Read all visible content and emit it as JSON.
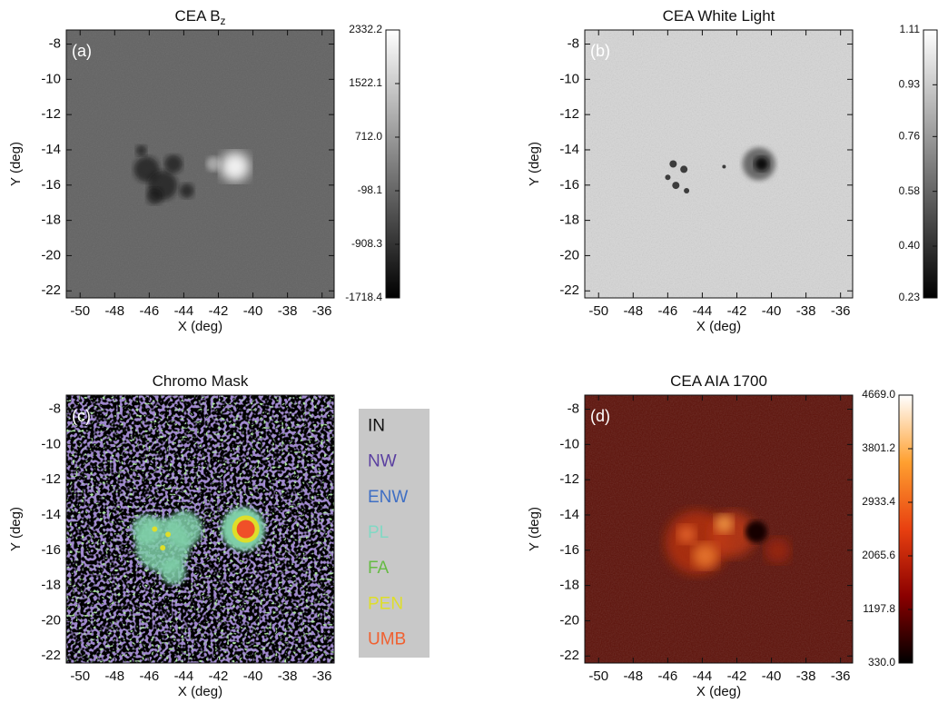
{
  "chart_data": [
    {
      "type": "image",
      "title": "CEA B",
      "title_subscript": "z",
      "panel_label": "(a)",
      "x_label": "X (deg)",
      "y_label": "Y (deg)",
      "xlim": [
        -50.8,
        -35.3
      ],
      "ylim": [
        -22.4,
        -7.2
      ],
      "xticks": [
        -50,
        -48,
        -46,
        -44,
        -42,
        -40,
        -38,
        -36
      ],
      "yticks": [
        -22,
        -20,
        -18,
        -16,
        -14,
        -12,
        -10,
        -8
      ],
      "colorbar": {
        "colors": [
          "#000000",
          "#ffffff"
        ],
        "lim": [
          -1718.4,
          2332.2
        ],
        "ticks": [
          -1718.4,
          -908.3,
          -98.1,
          {
            "value": 712,
            "label": "712.0"
          },
          1522.1,
          2332.2
        ]
      }
    },
    {
      "type": "image",
      "title": "CEA White Light",
      "panel_label": "(b)",
      "x_label": "X (deg)",
      "y_label": "Y (deg)",
      "xlim": [
        -50.8,
        -35.3
      ],
      "ylim": [
        -22.4,
        -7.2
      ],
      "xticks": [
        -50,
        -48,
        -46,
        -44,
        -42,
        -40,
        -38,
        -36
      ],
      "yticks": [
        -22,
        -20,
        -18,
        -16,
        -14,
        -12,
        -10,
        -8
      ],
      "colorbar": {
        "colors": [
          "#000000",
          "#ffffff"
        ],
        "lim": [
          0.23,
          1.11
        ],
        "ticks": [
          0.23,
          {
            "value": 0.4,
            "label": "0.40"
          },
          0.58,
          0.76,
          0.93,
          1.11
        ]
      }
    },
    {
      "type": "image",
      "title": "Chromo Mask",
      "panel_label": "(c)",
      "x_label": "X (deg)",
      "y_label": "Y (deg)",
      "xlim": [
        -50.8,
        -35.3
      ],
      "ylim": [
        -22.4,
        -7.2
      ],
      "xticks": [
        -50,
        -48,
        -46,
        -44,
        -42,
        -40,
        -38,
        -36
      ],
      "yticks": [
        -22,
        -20,
        -18,
        -16,
        -14,
        -12,
        -10,
        -8
      ],
      "legend": [
        {
          "name": "IN",
          "color": "#111111"
        },
        {
          "name": "NW",
          "color": "#5a3fa0"
        },
        {
          "name": "ENW",
          "color": "#3f6fc4"
        },
        {
          "name": "PL",
          "color": "#82d8c4"
        },
        {
          "name": "FA",
          "color": "#66bb44"
        },
        {
          "name": "PEN",
          "color": "#dede2a"
        },
        {
          "name": "UMB",
          "color": "#f06030"
        }
      ]
    },
    {
      "type": "image",
      "title": "CEA AIA 1700",
      "panel_label": "(d)",
      "x_label": "X (deg)",
      "y_label": "Y (deg)",
      "xlim": [
        -50.8,
        -35.3
      ],
      "ylim": [
        -22.4,
        -7.2
      ],
      "xticks": [
        -50,
        -48,
        -46,
        -44,
        -42,
        -40,
        -38,
        -36
      ],
      "yticks": [
        -22,
        -20,
        -18,
        -16,
        -14,
        -12,
        -10,
        -8
      ],
      "colorbar": {
        "colors": [
          "#000000",
          "#8b0000",
          "#e84010",
          "#ffa030",
          "#ffffff"
        ],
        "lim": [
          330,
          4669
        ],
        "ticks": [
          {
            "value": 330,
            "label": "330.0"
          },
          1197.8,
          2065.6,
          2933.4,
          3801.2,
          {
            "value": 4669,
            "label": "4669.0"
          }
        ]
      }
    }
  ]
}
